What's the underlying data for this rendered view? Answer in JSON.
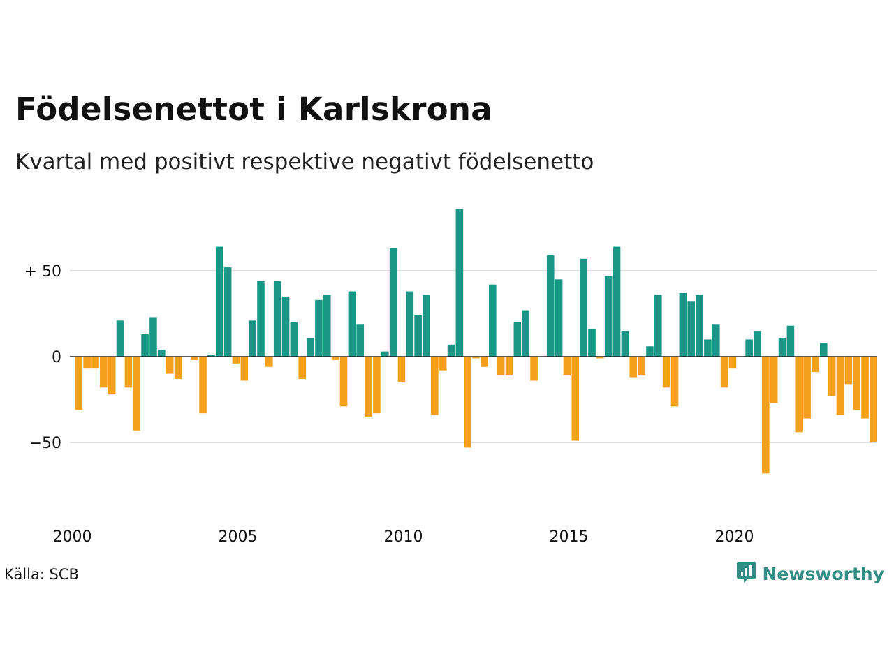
{
  "header": {
    "title": "Födelsenettot i Karlskrona",
    "subtitle": "Kvartal med positivt respektive negativt födelsenetto"
  },
  "footer": {
    "source": "Källa: SCB",
    "brand": "Newsworthy",
    "brand_icon": "newsworthy-logo-icon"
  },
  "colors": {
    "positive": "#1a9687",
    "negative": "#f5a01d",
    "gridline": "#dddddd",
    "zero_line": "#222222",
    "brand": "#2f8f84"
  },
  "chart_data": {
    "type": "bar",
    "title": "Födelsenettot i Karlskrona",
    "subtitle": "Kvartal med positivt respektive negativt födelsenetto",
    "x_start": "2000-Q1",
    "x_ticks": [
      "2000",
      "2005",
      "2010",
      "2015",
      "2020"
    ],
    "y_ticks": [
      {
        "value": 50,
        "label": "+ 50"
      },
      {
        "value": 0,
        "label": "0"
      },
      {
        "value": -50,
        "label": "−50"
      }
    ],
    "ylim": [
      -80,
      90
    ],
    "grid": true,
    "values": [
      -31,
      -7,
      -7,
      -18,
      -22,
      21,
      -18,
      -43,
      13,
      23,
      4,
      -10,
      -13,
      0,
      -2,
      -33,
      1,
      64,
      52,
      -4,
      -14,
      21,
      44,
      -6,
      44,
      35,
      20,
      -13,
      11,
      33,
      36,
      -2,
      -29,
      38,
      19,
      -35,
      -33,
      3,
      63,
      -15,
      38,
      24,
      36,
      -34,
      -8,
      7,
      86,
      -53,
      -1,
      -6,
      42,
      -11,
      -11,
      20,
      27,
      -14,
      0,
      59,
      45,
      -11,
      -49,
      57,
      16,
      -1,
      47,
      64,
      15,
      -12,
      -11,
      6,
      36,
      -18,
      -29,
      37,
      32,
      36,
      10,
      19,
      -18,
      -7,
      0,
      10,
      15,
      -68,
      -27,
      11,
      18,
      -44,
      -36,
      -9,
      8,
      -23,
      -34,
      -16,
      -31,
      -36,
      -50
    ]
  }
}
